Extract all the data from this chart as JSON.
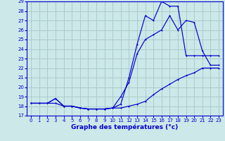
{
  "title": "Graphe des températures (°c)",
  "bg_color": "#cce8e8",
  "grid_color": "#aacccc",
  "line_color": "#0000cc",
  "xlim": [
    -0.5,
    23.5
  ],
  "ylim": [
    17,
    29
  ],
  "xticks": [
    0,
    1,
    2,
    3,
    4,
    5,
    6,
    7,
    8,
    9,
    10,
    11,
    12,
    13,
    14,
    15,
    16,
    17,
    18,
    19,
    20,
    21,
    22,
    23
  ],
  "yticks": [
    17,
    18,
    19,
    20,
    21,
    22,
    23,
    24,
    25,
    26,
    27,
    28,
    29
  ],
  "series1_x": [
    0,
    1,
    2,
    3,
    4,
    5,
    6,
    7,
    8,
    9,
    10,
    11,
    12,
    13,
    14,
    15,
    16,
    17,
    18,
    19,
    20,
    21,
    22,
    23
  ],
  "series1_y": [
    18.3,
    18.3,
    18.3,
    18.3,
    18.0,
    18.0,
    17.8,
    17.7,
    17.7,
    17.7,
    17.8,
    17.8,
    18.0,
    18.2,
    18.5,
    19.2,
    19.8,
    20.3,
    20.8,
    21.2,
    21.5,
    22.0,
    22.0,
    22.0
  ],
  "series2_x": [
    0,
    1,
    2,
    3,
    4,
    5,
    6,
    7,
    8,
    9,
    10,
    11,
    12,
    13,
    14,
    15,
    16,
    17,
    18,
    19,
    20,
    21,
    22,
    23
  ],
  "series2_y": [
    18.3,
    18.3,
    18.3,
    18.8,
    18.0,
    18.0,
    17.8,
    17.7,
    17.7,
    17.7,
    17.8,
    18.2,
    21.0,
    24.5,
    27.5,
    27.0,
    29.0,
    28.5,
    28.5,
    23.3,
    23.3,
    23.3,
    23.3,
    23.3
  ],
  "series3_x": [
    0,
    1,
    2,
    3,
    4,
    5,
    6,
    7,
    8,
    9,
    10,
    11,
    12,
    13,
    14,
    15,
    16,
    17,
    18,
    19,
    20,
    21,
    22,
    23
  ],
  "series3_y": [
    18.3,
    18.3,
    18.3,
    18.8,
    18.0,
    18.0,
    17.8,
    17.7,
    17.7,
    17.7,
    17.8,
    19.0,
    20.5,
    23.5,
    25.0,
    25.5,
    26.0,
    27.5,
    26.0,
    27.0,
    26.8,
    23.8,
    22.3,
    22.3
  ]
}
